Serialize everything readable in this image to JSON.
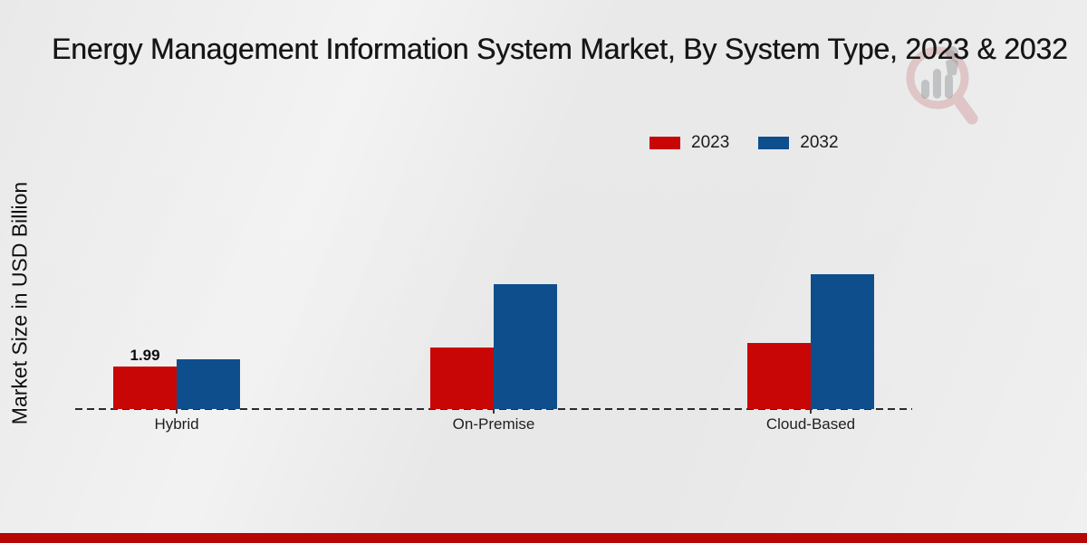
{
  "title": "Energy Management Information System Market, By System Type, 2023 & 2032",
  "ylabel": "Market Size in USD Billion",
  "legend": {
    "items": [
      {
        "label": "2023",
        "color": "#c90606"
      },
      {
        "label": "2032",
        "color": "#0f4e8c"
      }
    ]
  },
  "colors": {
    "series_2023": "#c90606",
    "series_2032": "#0f4e8c",
    "footer_bar": "#b80606",
    "baseline": "#2b2b2b",
    "background": "#e9e9e9"
  },
  "chart_data": {
    "type": "bar",
    "title": "Energy Management Information System Market, By System Type, 2023 & 2032",
    "categories": [
      "Hybrid",
      "On-Premise",
      "Cloud-Based"
    ],
    "series": [
      {
        "name": "2023",
        "color": "#c90606",
        "values": [
          1.99,
          2.88,
          3.09
        ]
      },
      {
        "name": "2032",
        "color": "#0f4e8c",
        "values": [
          2.33,
          5.85,
          6.31
        ]
      }
    ],
    "data_labels": [
      {
        "series": "2023",
        "category": "Hybrid",
        "text": "1.99"
      }
    ],
    "xlabel": "",
    "ylabel": "Market Size in USD Billion",
    "ylim": [
      0,
      6.8
    ],
    "grid": false,
    "y_axis_ticks_visible": false,
    "baseline_style": "dashed",
    "legend_position": "top-center-right"
  }
}
